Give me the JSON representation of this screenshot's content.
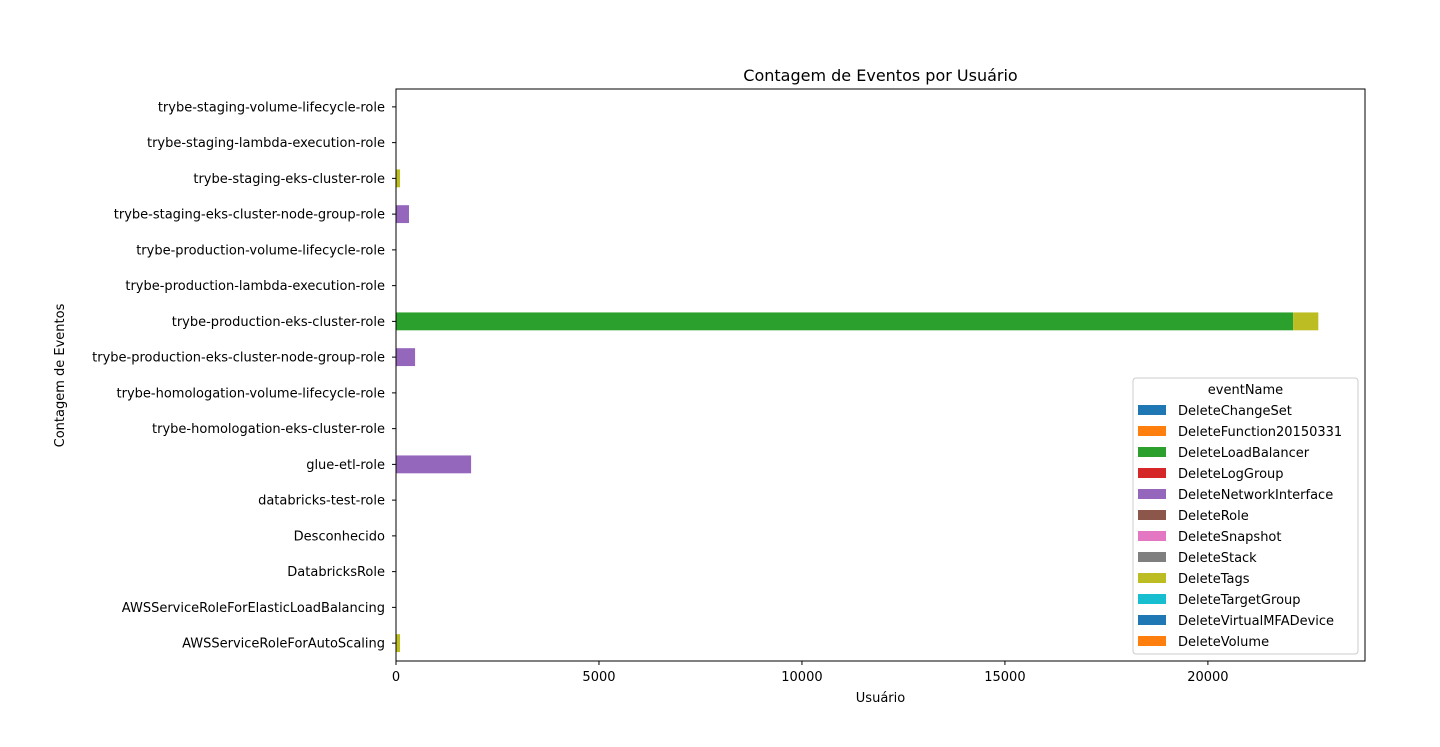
{
  "chart_data": {
    "type": "bar",
    "orientation": "horizontal",
    "stacked": true,
    "title": "Contagem de Eventos por Usuário",
    "xlabel": "Usuário",
    "ylabel": "Contagem de Eventos",
    "xlim": [
      0,
      23870
    ],
    "xticks": [
      0,
      5000,
      10000,
      15000,
      20000
    ],
    "grid": false,
    "legend_title": "eventName",
    "legend_position": "lower right",
    "categories": [
      "AWSServiceRoleForAutoScaling",
      "AWSServiceRoleForElasticLoadBalancing",
      "DatabricksRole",
      "Desconhecido",
      "databricks-test-role",
      "glue-etl-role",
      "trybe-homologation-eks-cluster-role",
      "trybe-homologation-volume-lifecycle-role",
      "trybe-production-eks-cluster-node-group-role",
      "trybe-production-eks-cluster-role",
      "trybe-production-lambda-execution-role",
      "trybe-production-volume-lifecycle-role",
      "trybe-staging-eks-cluster-node-group-role",
      "trybe-staging-eks-cluster-role",
      "trybe-staging-lambda-execution-role",
      "trybe-staging-volume-lifecycle-role"
    ],
    "series": [
      {
        "name": "DeleteChangeSet",
        "color": "#1f77b4",
        "values": [
          0,
          0,
          0,
          0,
          0,
          0,
          0,
          0,
          0,
          0,
          0,
          0,
          0,
          0,
          0,
          0
        ]
      },
      {
        "name": "DeleteFunction20150331",
        "color": "#ff7f0e",
        "values": [
          0,
          0,
          0,
          0,
          0,
          0,
          0,
          0,
          0,
          0,
          0,
          0,
          0,
          0,
          0,
          0
        ]
      },
      {
        "name": "DeleteLoadBalancer",
        "color": "#2ca02c",
        "values": [
          0,
          0,
          0,
          0,
          0,
          0,
          0,
          0,
          0,
          22100,
          0,
          0,
          0,
          0,
          0,
          0
        ]
      },
      {
        "name": "DeleteLogGroup",
        "color": "#d62728",
        "values": [
          0,
          0,
          0,
          0,
          0,
          0,
          0,
          0,
          0,
          0,
          0,
          0,
          0,
          0,
          0,
          0
        ]
      },
      {
        "name": "DeleteNetworkInterface",
        "color": "#9467bd",
        "values": [
          0,
          0,
          0,
          0,
          0,
          1850,
          0,
          0,
          470,
          0,
          0,
          0,
          320,
          0,
          0,
          0
        ]
      },
      {
        "name": "DeleteRole",
        "color": "#8c564b",
        "values": [
          0,
          0,
          0,
          0,
          0,
          0,
          0,
          0,
          0,
          0,
          0,
          0,
          0,
          0,
          0,
          0
        ]
      },
      {
        "name": "DeleteSnapshot",
        "color": "#e377c2",
        "values": [
          0,
          0,
          0,
          0,
          0,
          0,
          0,
          0,
          0,
          0,
          0,
          0,
          0,
          0,
          0,
          0
        ]
      },
      {
        "name": "DeleteStack",
        "color": "#7f7f7f",
        "values": [
          0,
          0,
          0,
          0,
          0,
          0,
          0,
          0,
          0,
          0,
          0,
          0,
          0,
          0,
          0,
          0
        ]
      },
      {
        "name": "DeleteTags",
        "color": "#bcbd22",
        "values": [
          100,
          0,
          0,
          0,
          0,
          0,
          0,
          0,
          0,
          620,
          0,
          0,
          0,
          100,
          0,
          0
        ]
      },
      {
        "name": "DeleteTargetGroup",
        "color": "#17becf",
        "values": [
          0,
          0,
          0,
          0,
          0,
          0,
          0,
          0,
          0,
          0,
          0,
          0,
          0,
          0,
          0,
          0
        ]
      },
      {
        "name": "DeleteVirtualMFADevice",
        "color": "#1f77b4",
        "values": [
          0,
          0,
          0,
          0,
          0,
          0,
          0,
          0,
          0,
          0,
          0,
          0,
          0,
          0,
          0,
          0
        ]
      },
      {
        "name": "DeleteVolume",
        "color": "#ff7f0e",
        "values": [
          0,
          0,
          0,
          0,
          0,
          0,
          0,
          0,
          0,
          0,
          0,
          0,
          0,
          0,
          0,
          0
        ]
      }
    ]
  }
}
